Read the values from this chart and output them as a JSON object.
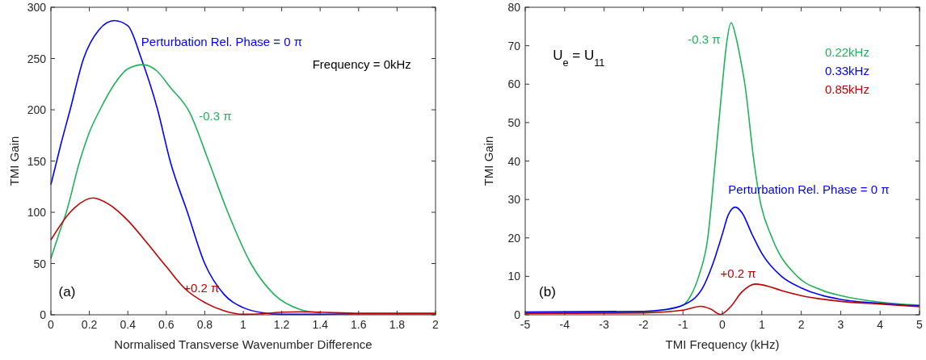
{
  "chart_data": [
    {
      "type": "line",
      "xlabel": "Normalised Transverse Wavenumber Difference",
      "ylabel": "TMI Gain",
      "xlim": [
        0,
        2
      ],
      "ylim": [
        0,
        300
      ],
      "xticks": [
        0,
        0.2,
        0.4,
        0.6,
        0.8,
        1,
        1.2,
        1.4,
        1.6,
        1.8,
        2
      ],
      "yticks": [
        0,
        50,
        100,
        150,
        200,
        250,
        300
      ],
      "grid": false,
      "annotations": [
        "Frequency = 0kHz",
        "(a)"
      ],
      "series": [
        {
          "name": "Perturbation Rel. Phase = 0 π",
          "color": "#0000ff",
          "x": [
            0,
            0.05,
            0.1,
            0.17,
            0.25,
            0.33,
            0.4,
            0.47,
            0.555,
            0.62,
            0.71,
            0.8,
            0.9,
            1.0,
            1.1,
            1.2,
            1.4,
            1.6,
            2
          ],
          "values": [
            127,
            165,
            200,
            250,
            278,
            287,
            282,
            250,
            200,
            150,
            100,
            50,
            20,
            7,
            2,
            0.5,
            0.5,
            1,
            1
          ]
        },
        {
          "name": "-0.3 π",
          "color": "#1fb25a",
          "x": [
            0,
            0.04,
            0.08,
            0.15,
            0.2,
            0.255,
            0.33,
            0.4,
            0.48,
            0.55,
            0.62,
            0.72,
            0.82,
            0.92,
            1.04,
            1.16,
            1.3,
            1.4
          ],
          "values": [
            55,
            78,
            100,
            150,
            178,
            200,
            225,
            240,
            244,
            238,
            222,
            198,
            150,
            100,
            50,
            20,
            5,
            2
          ]
        },
        {
          "name": "+0.2 π",
          "color": "#c00000",
          "x": [
            0,
            0.1,
            0.22,
            0.3,
            0.4,
            0.5,
            0.6,
            0.7,
            0.8,
            0.9,
            1.0,
            1.1,
            1.2,
            1.3,
            1.4,
            1.6,
            2
          ],
          "values": [
            73,
            100,
            114,
            108,
            92,
            70,
            47,
            25,
            12,
            4,
            0.5,
            1,
            2.5,
            3,
            2.5,
            1.5,
            1.5
          ]
        }
      ]
    },
    {
      "type": "line",
      "xlabel": "TMI Frequency  (kHz)",
      "ylabel": "TMI Gain",
      "xlim": [
        -5,
        5
      ],
      "ylim": [
        0,
        80
      ],
      "xticks": [
        -5,
        -4,
        -3,
        -2,
        -1,
        0,
        1,
        2,
        3,
        4,
        5
      ],
      "yticks": [
        0,
        10,
        20,
        30,
        40,
        50,
        60,
        70,
        80
      ],
      "grid": false,
      "annotations": [
        "U$_{e}$ = U$_{11}$",
        "(b)",
        "0.22kHz",
        "0.33kHz",
        "0.85kHz"
      ],
      "series": [
        {
          "name": "-0.3 π",
          "color": "#1fb25a",
          "x": [
            -5,
            -2,
            -1.5,
            -1,
            -0.8,
            -0.6,
            -0.37,
            -0.18,
            0,
            0.1,
            0.22,
            0.35,
            0.45,
            0.57,
            0.8,
            0.95,
            1.26,
            1.9,
            2.5,
            3,
            4,
            5
          ],
          "values": [
            0.5,
            0.7,
            1.2,
            2.5,
            5,
            10,
            20,
            40,
            60,
            70,
            76,
            72,
            67,
            60,
            40,
            30,
            20,
            10,
            6.5,
            5,
            3.3,
            2.5
          ]
        },
        {
          "name": "Perturbation Rel. Phase = 0 π",
          "color": "#0000ff",
          "x": [
            -5,
            -2,
            -1.5,
            -1,
            -0.5,
            -0.25,
            0,
            0.15,
            0.33,
            0.5,
            0.75,
            1,
            1.5,
            2,
            3,
            4,
            5
          ],
          "values": [
            0.7,
            0.9,
            1.3,
            2.5,
            7,
            13,
            21,
            26,
            28,
            26.5,
            21,
            16,
            10,
            7,
            4,
            3,
            2.3
          ]
        },
        {
          "name": "+0.2 π",
          "color": "#c00000",
          "x": [
            -5,
            -2,
            -1,
            -0.55,
            -0.3,
            -0.05,
            0.2,
            0.5,
            0.85,
            1.2,
            1.5,
            2,
            3,
            4,
            5
          ],
          "values": [
            0.3,
            0.5,
            1.2,
            2.2,
            1.5,
            0.1,
            2,
            6,
            8,
            7.3,
            6.3,
            5,
            3.5,
            2.8,
            2.1
          ]
        }
      ]
    }
  ]
}
